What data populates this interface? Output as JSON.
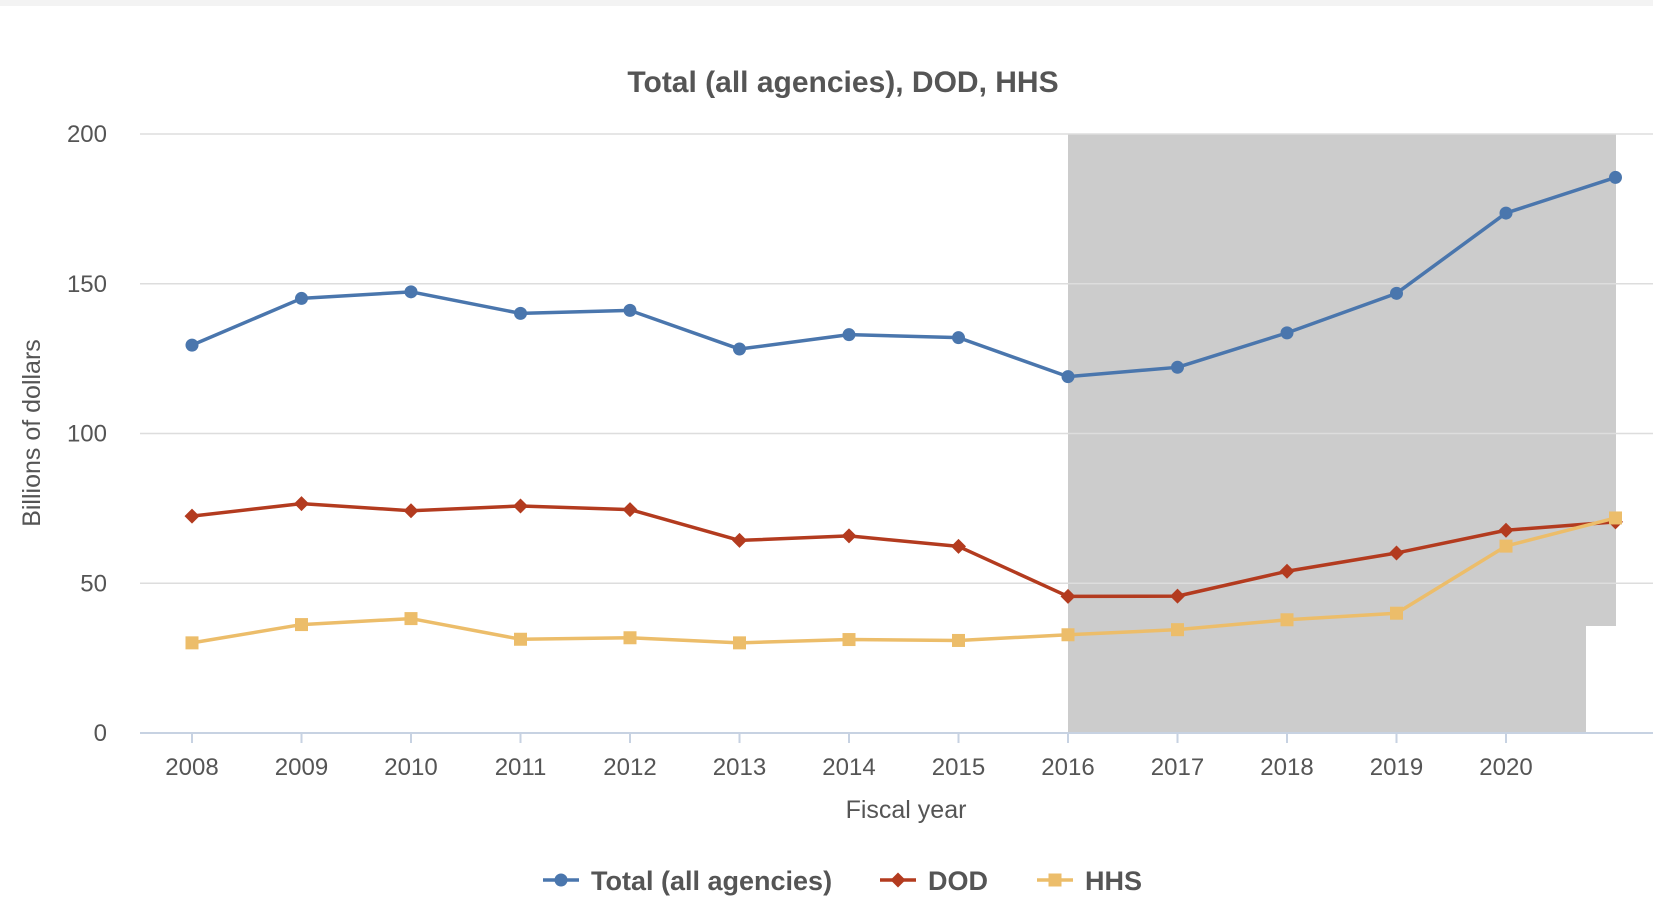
{
  "chart_data": {
    "type": "line",
    "title": "Total (all agencies), DOD, HHS",
    "xlabel": "Fiscal year",
    "ylabel": "Billions of dollars",
    "x": [
      2008,
      2009,
      2010,
      2011,
      2012,
      2013,
      2014,
      2015,
      2016,
      2017,
      2018,
      2019,
      2020,
      2021
    ],
    "x_tick_labels": [
      "2008",
      "2009",
      "2010",
      "2011",
      "2012",
      "2013",
      "2014",
      "2015",
      "2016",
      "2017",
      "2018",
      "2019",
      "2020"
    ],
    "ylim": [
      0,
      200
    ],
    "y_ticks": [
      0,
      50,
      100,
      150,
      200
    ],
    "grid": true,
    "legend_position": "bottom",
    "shaded_region": {
      "x_start": 2016,
      "x_end": 2021,
      "color": "#cccccc"
    },
    "series": [
      {
        "name": "Total (all agencies)",
        "color": "#4a76ad",
        "marker": "circle",
        "values": [
          129.5,
          145.1,
          147.3,
          140.1,
          141.1,
          128.2,
          133.0,
          132.0,
          119.0,
          122.1,
          133.6,
          146.8,
          173.6,
          185.5
        ]
      },
      {
        "name": "DOD",
        "color": "#b33b1f",
        "marker": "diamond",
        "values": [
          72.4,
          76.6,
          74.2,
          75.8,
          74.6,
          64.3,
          65.8,
          62.3,
          45.6,
          45.7,
          54.0,
          60.1,
          67.7,
          70.5
        ]
      },
      {
        "name": "HHS",
        "color": "#ecbd6a",
        "marker": "square",
        "values": [
          30.1,
          36.2,
          38.2,
          31.3,
          31.8,
          30.1,
          31.2,
          30.9,
          32.8,
          34.5,
          37.8,
          40.0,
          62.4,
          71.8
        ]
      }
    ]
  }
}
